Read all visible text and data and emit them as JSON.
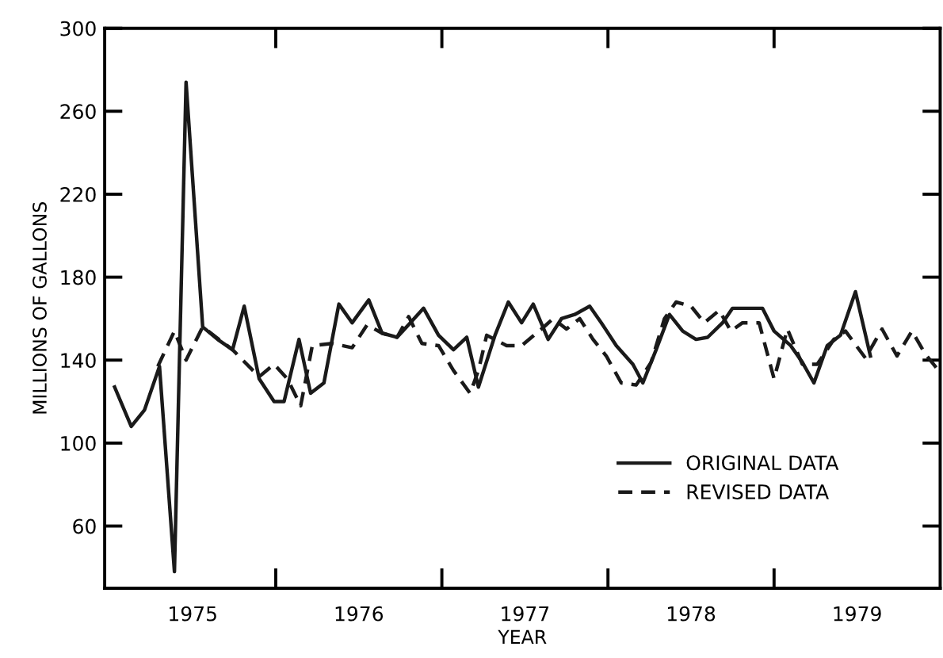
{
  "chart_data": {
    "type": "line",
    "xlabel": "YEAR",
    "ylabel": "MILLIONS OF GALLONS",
    "xlim": [
      1974.47,
      1979.5
    ],
    "ylim": [
      30,
      300
    ],
    "xticks": [
      {
        "value": 1975,
        "label": "1975"
      },
      {
        "value": 1975.5,
        "label": null
      },
      {
        "value": 1976,
        "label": "1976"
      },
      {
        "value": 1976.5,
        "label": null
      },
      {
        "value": 1977,
        "label": "1977"
      },
      {
        "value": 1977.5,
        "label": null
      },
      {
        "value": 1978,
        "label": "1978"
      },
      {
        "value": 1978.5,
        "label": null
      },
      {
        "value": 1979,
        "label": "1979"
      }
    ],
    "yticks": [
      60,
      100,
      140,
      180,
      220,
      260,
      300
    ],
    "grid": false,
    "legend": "bottom right",
    "marker": "none",
    "series": [
      {
        "name": "ORIGINAL DATA",
        "color": "#1a1a1a",
        "line_style": "solid",
        "x": [
          1974.53,
          1974.63,
          1974.71,
          1974.8,
          1974.89,
          1974.96,
          1975.06,
          1975.15,
          1975.24,
          1975.31,
          1975.4,
          1975.49,
          1975.55,
          1975.64,
          1975.71,
          1975.79,
          1975.88,
          1975.96,
          1976.06,
          1976.14,
          1976.23,
          1976.31,
          1976.39,
          1976.48,
          1976.57,
          1976.65,
          1976.72,
          1976.82,
          1976.9,
          1976.98,
          1977.05,
          1977.14,
          1977.22,
          1977.3,
          1977.39,
          1977.46,
          1977.55,
          1977.65,
          1977.71,
          1977.79,
          1977.87,
          1977.95,
          1978.03,
          1978.1,
          1978.19,
          1978.25,
          1978.43,
          1978.5,
          1978.6,
          1978.67,
          1978.74,
          1978.82,
          1978.9,
          1978.99,
          1979.08
        ],
        "values": [
          127,
          108,
          116,
          137,
          38,
          274,
          156,
          150,
          145,
          166,
          131,
          120,
          120,
          150,
          124,
          129,
          167,
          158,
          169,
          153,
          151,
          158,
          165,
          152,
          145,
          151,
          127,
          152,
          168,
          158,
          167,
          150,
          160,
          162,
          166,
          158,
          147,
          138,
          129,
          145,
          162,
          154,
          150,
          151,
          158,
          165,
          165,
          154,
          147,
          139,
          129,
          147,
          152,
          173,
          142
        ]
      },
      {
        "name": "REVISED DATA",
        "color": "#1a1a1a",
        "line_style": "dashed",
        "x": [
          1974.79,
          1974.89,
          1974.96,
          1975.06,
          1975.24,
          1975.4,
          1975.49,
          1975.57,
          1975.65,
          1975.72,
          1975.84,
          1975.96,
          1976.05,
          1976.14,
          1976.23,
          1976.3,
          1976.38,
          1976.48,
          1976.57,
          1976.67,
          1976.72,
          1976.77,
          1976.89,
          1976.98,
          1977.1,
          1977.17,
          1977.25,
          1977.33,
          1977.41,
          1977.49,
          1977.58,
          1977.67,
          1977.76,
          1977.84,
          1977.91,
          1978.0,
          1978.08,
          1978.17,
          1978.24,
          1978.31,
          1978.41,
          1978.5,
          1978.58,
          1978.67,
          1978.76,
          1978.86,
          1978.93,
          1979.05,
          1979.15,
          1979.24,
          1979.33,
          1979.41,
          1979.49
        ],
        "values": [
          137,
          154,
          140,
          156,
          145,
          132,
          138,
          131,
          118,
          147,
          148,
          146,
          157,
          153,
          151,
          161,
          148,
          147,
          135,
          124,
          135,
          152,
          147,
          147,
          155,
          160,
          155,
          160,
          150,
          142,
          129,
          128,
          139,
          160,
          168,
          166,
          158,
          164,
          154,
          158,
          158,
          131,
          155,
          138,
          138,
          150,
          154,
          141,
          155,
          142,
          154,
          143,
          135
        ]
      }
    ]
  }
}
